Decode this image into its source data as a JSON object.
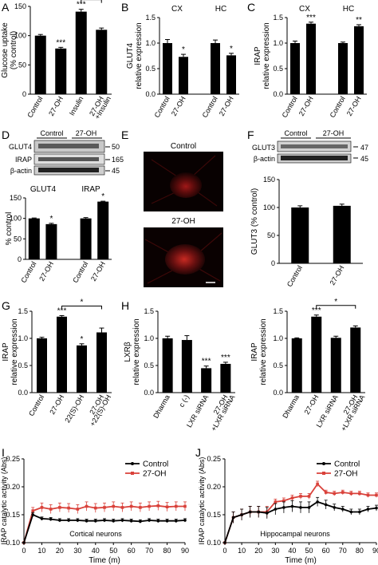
{
  "chart_data": [
    {
      "panel": "A",
      "type": "bar",
      "ylabel": "Glucose uptake\n(% control)",
      "ylim": [
        0,
        150
      ],
      "yticks": [
        0,
        50,
        100,
        150
      ],
      "categories": [
        "Control",
        "27-OH",
        "Insulin",
        "27-OH\n+Insulin"
      ],
      "values": [
        100,
        78,
        141,
        110
      ],
      "errors": [
        2,
        2,
        4,
        3
      ],
      "stars": [
        "",
        "***",
        "***",
        ""
      ],
      "brackets": [
        {
          "from": 2,
          "to": 3,
          "label": "***"
        }
      ]
    },
    {
      "panel": "B",
      "type": "bar",
      "ylabel": "GLUT4\nrelative expression",
      "ylim": [
        0,
        1.5
      ],
      "yticks": [
        0,
        0.5,
        1.0,
        1.5
      ],
      "groups": [
        "CX",
        "HC"
      ],
      "categories": [
        "Control",
        "27-OH",
        "Control",
        "27-OH"
      ],
      "values": [
        1.0,
        0.73,
        1.0,
        0.76
      ],
      "errors": [
        0.07,
        0.05,
        0.06,
        0.04
      ],
      "stars": [
        "",
        "*",
        "",
        "*"
      ]
    },
    {
      "panel": "C",
      "type": "bar",
      "ylabel": "IRAP\nrelative expression",
      "ylim": [
        0,
        1.5
      ],
      "yticks": [
        0,
        0.5,
        1.0,
        1.5
      ],
      "groups": [
        "CX",
        "HC"
      ],
      "categories": [
        "Control",
        "27-OH",
        "Control",
        "27-OH"
      ],
      "values": [
        1.0,
        1.38,
        1.0,
        1.33
      ],
      "errors": [
        0.04,
        0.03,
        0.02,
        0.03
      ],
      "stars": [
        "",
        "***",
        "",
        "**"
      ]
    },
    {
      "panel": "D",
      "type": "bar",
      "ylabel": "% control",
      "ylim": [
        0,
        150
      ],
      "yticks": [
        0,
        50,
        100,
        150
      ],
      "groups": [
        "GLUT4",
        "IRAP"
      ],
      "categories": [
        "Control",
        "27-OH",
        "Control",
        "27-OH"
      ],
      "values": [
        100,
        86,
        100,
        141
      ],
      "errors": [
        1,
        2,
        2,
        1
      ],
      "stars": [
        "",
        "*",
        "",
        "*"
      ],
      "blot": {
        "header": [
          "Control",
          "27-OH"
        ],
        "rows": [
          {
            "label": "GLUT4",
            "kda": "50"
          },
          {
            "label": "IRAP",
            "kda": "165"
          },
          {
            "label": "β-actin",
            "kda": "45"
          }
        ]
      }
    },
    {
      "panel": "E",
      "type": "image",
      "labels": [
        "Control",
        "27-OH"
      ]
    },
    {
      "panel": "F",
      "type": "bar",
      "ylabel": "GLUT3 (% control)",
      "ylim": [
        0,
        150
      ],
      "yticks": [
        0,
        50,
        100,
        150
      ],
      "categories": [
        "Control",
        "27-OH"
      ],
      "values": [
        100,
        103
      ],
      "errors": [
        3,
        3
      ],
      "stars": [
        "",
        ""
      ],
      "blot": {
        "header": [
          "Control",
          "27-OH"
        ],
        "rows": [
          {
            "label": "GLUT3",
            "kda": "47"
          },
          {
            "label": "β-actin",
            "kda": "45"
          }
        ]
      }
    },
    {
      "panel": "G",
      "type": "bar",
      "ylabel": "IRAP\nrelative expression",
      "ylim": [
        0,
        1.5
      ],
      "yticks": [
        0,
        0.5,
        1.0,
        1.5
      ],
      "categories": [
        "Control",
        "27-OH",
        "22(S)-OH",
        "27-OH\n+22(S)-OH"
      ],
      "values": [
        1.0,
        1.4,
        0.87,
        1.11
      ],
      "errors": [
        0.02,
        0.02,
        0.03,
        0.08
      ],
      "stars": [
        "",
        "***",
        "*",
        ""
      ],
      "brackets": [
        {
          "from": 1,
          "to": 3,
          "label": "*"
        }
      ]
    },
    {
      "panel": "H",
      "type": "bar",
      "ylabel": "LXRβ\nrelative expression",
      "ylim": [
        0,
        1.5
      ],
      "yticks": [
        0,
        0.5,
        1.0,
        1.5
      ],
      "categories": [
        "Dharma",
        "c (-)",
        "LXR siRNA",
        "27-OH\n+LXR siRNA"
      ],
      "values": [
        1.0,
        0.97,
        0.45,
        0.53
      ],
      "errors": [
        0.04,
        0.08,
        0.04,
        0.03
      ],
      "stars": [
        "",
        "",
        "***",
        "***"
      ]
    },
    {
      "panel": "H2",
      "type": "bar",
      "ylabel": "IRAP\nrelative expression",
      "ylim": [
        0,
        1.5
      ],
      "yticks": [
        0,
        0.5,
        1.0,
        1.5
      ],
      "categories": [
        "Dharma",
        "27-OH",
        "LXR siRNA",
        "27-OH\n+LXR siRNA"
      ],
      "values": [
        1.0,
        1.4,
        1.01,
        1.2
      ],
      "errors": [
        0.01,
        0.03,
        0.03,
        0.03
      ],
      "stars": [
        "",
        "***",
        "",
        ""
      ],
      "brackets": [
        {
          "from": 1,
          "to": 3,
          "label": "*"
        }
      ]
    },
    {
      "panel": "I",
      "type": "line",
      "ylabel": "IRAP catalytic activity (Abs)",
      "xlabel": "Time (m)",
      "annotation": "Cortical neurons",
      "xlim": [
        0,
        90
      ],
      "ylim": [
        0.1,
        0.25
      ],
      "xticks": [
        0,
        10,
        20,
        30,
        40,
        50,
        60,
        70,
        80,
        90
      ],
      "yticks": [
        0.1,
        0.15,
        0.2,
        0.25
      ],
      "legend": [
        "Control",
        "27-OH"
      ],
      "legend_position": "top-right",
      "x": [
        0,
        5,
        10,
        15,
        20,
        25,
        30,
        35,
        40,
        45,
        50,
        55,
        60,
        65,
        70,
        75,
        80,
        85,
        90
      ],
      "series": [
        {
          "name": "Control",
          "color": "#000000",
          "values": [
            0.1,
            0.15,
            0.143,
            0.142,
            0.14,
            0.14,
            0.14,
            0.139,
            0.139,
            0.14,
            0.139,
            0.14,
            0.139,
            0.138,
            0.14,
            0.139,
            0.139,
            0.139,
            0.14
          ],
          "errors": [
            0,
            0.004,
            0.003,
            0.003,
            0.003,
            0.003,
            0.003,
            0.003,
            0.003,
            0.003,
            0.003,
            0.003,
            0.003,
            0.003,
            0.003,
            0.003,
            0.003,
            0.003,
            0.003
          ]
        },
        {
          "name": "27-OH",
          "color": "#d9413a",
          "values": [
            0.1,
            0.157,
            0.163,
            0.16,
            0.163,
            0.162,
            0.16,
            0.165,
            0.162,
            0.163,
            0.165,
            0.163,
            0.165,
            0.163,
            0.165,
            0.166,
            0.164,
            0.165,
            0.165
          ],
          "errors": [
            0,
            0.006,
            0.008,
            0.008,
            0.008,
            0.008,
            0.008,
            0.008,
            0.008,
            0.008,
            0.008,
            0.008,
            0.008,
            0.008,
            0.008,
            0.008,
            0.008,
            0.008,
            0.008
          ]
        }
      ]
    },
    {
      "panel": "J",
      "type": "line",
      "ylabel": "IRAP catalytic activity (Abs)",
      "xlabel": "Time (m)",
      "annotation": "Hippocampal neurons",
      "xlim": [
        0,
        90
      ],
      "ylim": [
        0.1,
        0.25
      ],
      "xticks": [
        0,
        10,
        20,
        30,
        40,
        50,
        60,
        70,
        80,
        90
      ],
      "yticks": [
        0.1,
        0.15,
        0.2,
        0.25
      ],
      "legend": [
        "Control",
        "27-OH"
      ],
      "legend_position": "top-right",
      "x": [
        0,
        5,
        10,
        15,
        20,
        25,
        30,
        35,
        40,
        45,
        50,
        55,
        60,
        65,
        70,
        75,
        80,
        85,
        90
      ],
      "series": [
        {
          "name": "Control",
          "color": "#000000",
          "values": [
            0.1,
            0.145,
            0.15,
            0.155,
            0.155,
            0.153,
            0.16,
            0.163,
            0.165,
            0.163,
            0.163,
            0.173,
            0.168,
            0.163,
            0.16,
            0.155,
            0.155,
            0.16,
            0.162
          ],
          "errors": [
            0,
            0.01,
            0.01,
            0.01,
            0.01,
            0.01,
            0.01,
            0.01,
            0.01,
            0.01,
            0.01,
            0.008,
            0.008,
            0.006,
            0.005,
            0.005,
            0.005,
            0.005,
            0.005
          ]
        },
        {
          "name": "27-OH",
          "color": "#d9413a",
          "values": [
            0.1,
            0.145,
            0.15,
            0.155,
            0.155,
            0.155,
            0.173,
            0.175,
            0.18,
            0.183,
            0.183,
            0.205,
            0.19,
            0.188,
            0.19,
            0.188,
            0.188,
            0.185,
            0.185
          ],
          "errors": [
            0,
            0.01,
            0.01,
            0.01,
            0.01,
            0.01,
            0.005,
            0.005,
            0.005,
            0.005,
            0.005,
            0.005,
            0.004,
            0.004,
            0.004,
            0.004,
            0.004,
            0.004,
            0.004
          ]
        }
      ]
    }
  ]
}
